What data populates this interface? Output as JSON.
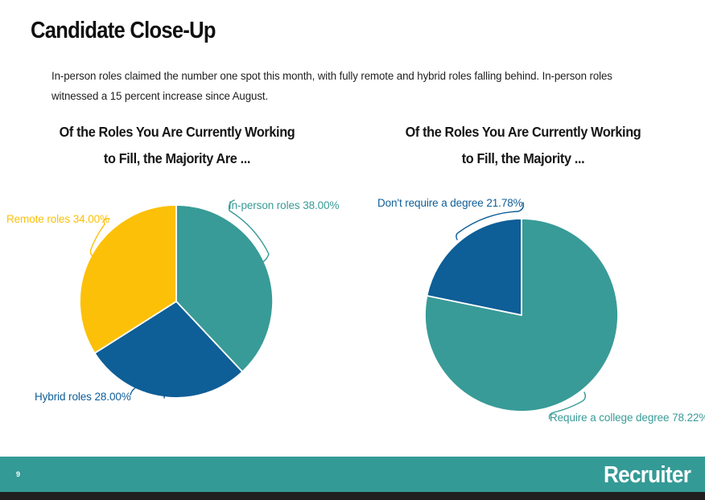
{
  "page": {
    "title": "Candidate Close-Up",
    "subtitle": "In-person roles claimed the number one spot this month, with fully remote and hybrid roles falling behind. In-person roles witnessed a 15 percent increase since August.",
    "footer": {
      "page_number": "9",
      "brand": "Recruiter"
    },
    "colors": {
      "teal": "#389b97",
      "gold": "#fcc008",
      "blue": "#0e5e97",
      "footer_bar": "#349a96",
      "footer_strip": "#201e1e",
      "slice_border": "#ffffff"
    }
  },
  "chart_data": [
    {
      "type": "pie",
      "title": "Of the Roles You Are Currently Working to Fill, the Majority Are ...",
      "title_lines": [
        "Of the Roles You Are Currently Working",
        "to Fill, the Majority Are ..."
      ],
      "start_angle_deg": 0,
      "direction": "clockwise",
      "labels_position": "outside",
      "slices": [
        {
          "label": "In-person roles",
          "value": 38.0,
          "display": "In-person roles 38.00%",
          "color": "#389b97"
        },
        {
          "label": "Hybrid roles",
          "value": 28.0,
          "display": "Hybrid roles 28.00%",
          "color": "#0e5e97"
        },
        {
          "label": "Remote roles",
          "value": 34.0,
          "display": "Remote roles 34.00%",
          "color": "#fcc008"
        }
      ]
    },
    {
      "type": "pie",
      "title": "Of the Roles You Are Currently Working to Fill, the Majority ...",
      "title_lines": [
        "Of the Roles You Are Currently Working",
        "to Fill, the Majority ..."
      ],
      "start_angle_deg": 0,
      "direction": "clockwise",
      "labels_position": "outside",
      "slices": [
        {
          "label": "Require a college degree",
          "value": 78.22,
          "display": "Require a college degree 78.22%",
          "color": "#389b97"
        },
        {
          "label": "Don't require a degree",
          "value": 21.78,
          "display": "Don't require a degree 21.78%",
          "color": "#0e5e97"
        }
      ]
    }
  ]
}
